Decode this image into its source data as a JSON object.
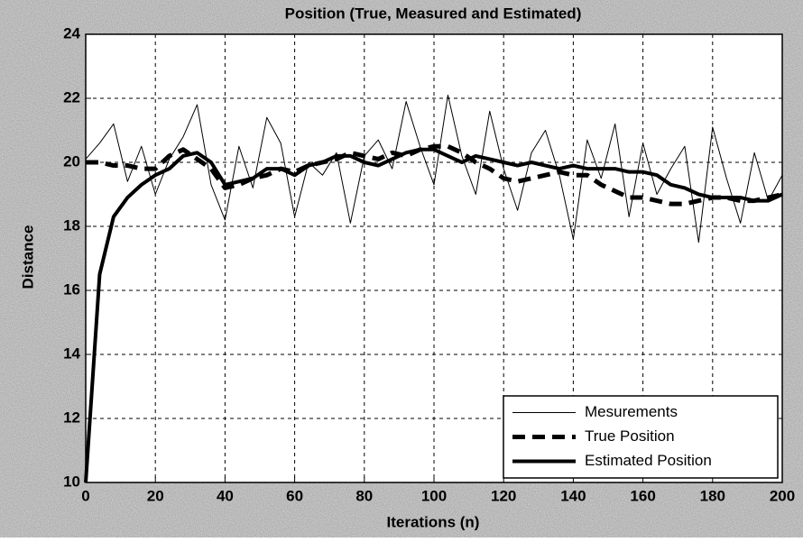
{
  "chart_data": {
    "type": "line",
    "title": "Position (True, Measured and Estimated)",
    "x_label": "Iterations (n)",
    "y_label": "Distance",
    "x": [
      0,
      4,
      8,
      12,
      16,
      20,
      24,
      28,
      32,
      36,
      40,
      44,
      48,
      52,
      56,
      60,
      64,
      68,
      72,
      76,
      80,
      84,
      88,
      92,
      96,
      100,
      104,
      108,
      112,
      116,
      120,
      124,
      128,
      132,
      136,
      140,
      144,
      148,
      152,
      156,
      160,
      164,
      168,
      172,
      176,
      180,
      184,
      188,
      192,
      196,
      200
    ],
    "series": [
      {
        "name": "Mesurements",
        "color": "#000000",
        "style": "solid",
        "width": 1,
        "values": [
          20.1,
          20.6,
          21.2,
          19.4,
          20.5,
          19.0,
          20.1,
          20.8,
          21.8,
          19.3,
          18.2,
          20.5,
          19.2,
          21.4,
          20.6,
          18.3,
          20.0,
          19.6,
          20.3,
          18.1,
          20.2,
          20.7,
          19.8,
          21.9,
          20.5,
          19.3,
          22.1,
          20.2,
          19.0,
          21.6,
          19.8,
          18.5,
          20.3,
          21.0,
          19.6,
          17.6,
          20.7,
          19.5,
          21.2,
          18.3,
          20.6,
          19.0,
          19.8,
          20.5,
          17.5,
          21.1,
          19.5,
          18.1,
          20.3,
          18.8,
          19.6
        ]
      },
      {
        "name": "True Position",
        "color": "#000000",
        "style": "dashed",
        "width": 5,
        "values": [
          20,
          20,
          19.9,
          19.9,
          19.8,
          19.8,
          20.2,
          20.4,
          20.1,
          19.8,
          19.2,
          19.3,
          19.5,
          19.6,
          19.8,
          19.7,
          19.9,
          20,
          20.1,
          20.3,
          20.2,
          20.1,
          20.3,
          20.2,
          20.4,
          20.5,
          20.5,
          20.3,
          20,
          19.8,
          19.5,
          19.4,
          19.5,
          19.6,
          19.7,
          19.6,
          19.6,
          19.3,
          19.1,
          18.9,
          18.9,
          18.8,
          18.7,
          18.7,
          18.8,
          18.9,
          18.9,
          18.8,
          18.8,
          18.9,
          19.0
        ]
      },
      {
        "name": "Estimated Position",
        "color": "#000000",
        "style": "solid",
        "width": 4,
        "values": [
          10,
          16.5,
          18.3,
          18.9,
          19.3,
          19.6,
          19.8,
          20.2,
          20.3,
          20.0,
          19.3,
          19.4,
          19.5,
          19.8,
          19.8,
          19.6,
          19.9,
          20.0,
          20.2,
          20.2,
          20.0,
          19.9,
          20.1,
          20.3,
          20.4,
          20.4,
          20.2,
          20.0,
          20.2,
          20.1,
          20.0,
          19.9,
          20.0,
          19.9,
          19.8,
          19.9,
          19.8,
          19.8,
          19.8,
          19.7,
          19.7,
          19.6,
          19.3,
          19.2,
          19.0,
          18.9,
          18.9,
          18.9,
          18.8,
          18.8,
          19.0
        ]
      }
    ],
    "xlim": [
      0,
      200
    ],
    "xticks": [
      0,
      20,
      40,
      60,
      80,
      100,
      120,
      140,
      160,
      180,
      200
    ],
    "ylim": [
      10,
      24
    ],
    "yticks": [
      10,
      12,
      14,
      16,
      18,
      20,
      22,
      24
    ],
    "grid": true,
    "legend": "lower right"
  }
}
